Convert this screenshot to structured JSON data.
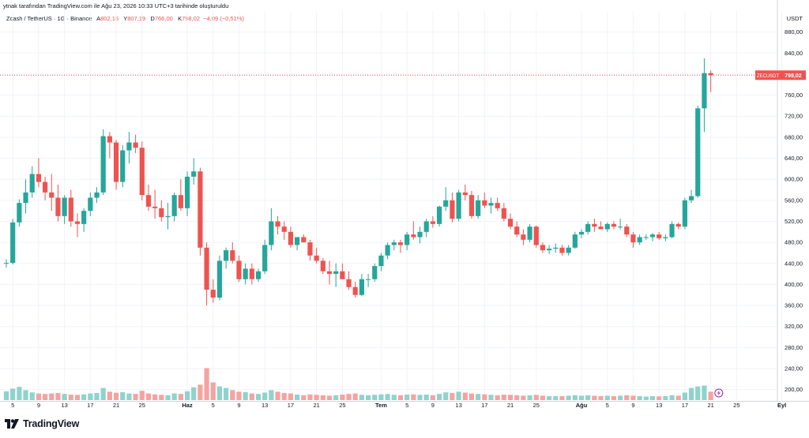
{
  "header": {
    "snapshot_text": "ytnak tarafından TradingView.com ile Ağu 23, 2026 10:33 UTC+3 tarihinde oluşturuldu"
  },
  "legend": {
    "symbol_text": "Zcash / TetherUS · 1G · Binance",
    "open_label": "A",
    "open_value": "802,16",
    "high_label": "Y",
    "high_value": "807,19",
    "low_label": "D",
    "low_value": "766,00",
    "close_label": "K",
    "close_value": "798,02",
    "change_text": "−4,09 (−0,51%)"
  },
  "footer": {
    "brand": "TradingView"
  },
  "colors": {
    "up": "#26a69a",
    "down": "#ef5350",
    "vol_up": "#8fd3cc",
    "vol_down": "#f5a3a1",
    "grid": "#f0f3fa",
    "text": "#131722"
  },
  "chart_data": {
    "type": "candlestick",
    "symbol_tag": "ZECUSDT",
    "last_price_label": "798,02",
    "last_price": 798.02,
    "currency": "USDT",
    "ylim": [
      180,
      920
    ],
    "y_ticks": [
      "200,00",
      "240,00",
      "280,00",
      "320,00",
      "360,00",
      "400,00",
      "440,00",
      "480,00",
      "520,00",
      "560,00",
      "600,00",
      "640,00",
      "680,00",
      "720,00",
      "760,00",
      "800,00",
      "840,00",
      "880,00"
    ],
    "y_tick_values": [
      200,
      240,
      280,
      320,
      360,
      400,
      440,
      480,
      520,
      560,
      600,
      640,
      680,
      720,
      760,
      800,
      840,
      880
    ],
    "x_ticks": [
      {
        "i": 1,
        "label": "5"
      },
      {
        "i": 5,
        "label": "9"
      },
      {
        "i": 9,
        "label": "13"
      },
      {
        "i": 13,
        "label": "17"
      },
      {
        "i": 17,
        "label": "21"
      },
      {
        "i": 21,
        "label": "25"
      },
      {
        "i": 28,
        "label": "Haz"
      },
      {
        "i": 32,
        "label": "5"
      },
      {
        "i": 36,
        "label": "9"
      },
      {
        "i": 40,
        "label": "13"
      },
      {
        "i": 44,
        "label": "17"
      },
      {
        "i": 48,
        "label": "21"
      },
      {
        "i": 52,
        "label": "25"
      },
      {
        "i": 58,
        "label": "Tem"
      },
      {
        "i": 62,
        "label": "5"
      },
      {
        "i": 66,
        "label": "9"
      },
      {
        "i": 70,
        "label": "13"
      },
      {
        "i": 74,
        "label": "17"
      },
      {
        "i": 78,
        "label": "21"
      },
      {
        "i": 82,
        "label": "25"
      },
      {
        "i": 89,
        "label": "Ağu"
      },
      {
        "i": 93,
        "label": "5"
      },
      {
        "i": 97,
        "label": "9"
      },
      {
        "i": 101,
        "label": "13"
      },
      {
        "i": 105,
        "label": "17"
      },
      {
        "i": 109,
        "label": "21"
      },
      {
        "i": 113,
        "label": "25"
      },
      {
        "i": 120,
        "label": "Eyl"
      }
    ],
    "candles": [
      {
        "o": 440,
        "h": 448,
        "l": 432,
        "c": 441,
        "v": 40
      },
      {
        "o": 441,
        "h": 525,
        "l": 438,
        "c": 518,
        "v": 52
      },
      {
        "o": 518,
        "h": 562,
        "l": 510,
        "c": 555,
        "v": 60
      },
      {
        "o": 555,
        "h": 600,
        "l": 535,
        "c": 575,
        "v": 45
      },
      {
        "o": 575,
        "h": 625,
        "l": 565,
        "c": 610,
        "v": 35
      },
      {
        "o": 610,
        "h": 640,
        "l": 585,
        "c": 595,
        "v": 30
      },
      {
        "o": 595,
        "h": 605,
        "l": 560,
        "c": 575,
        "v": 28
      },
      {
        "o": 575,
        "h": 610,
        "l": 540,
        "c": 565,
        "v": 30
      },
      {
        "o": 565,
        "h": 590,
        "l": 520,
        "c": 530,
        "v": 32
      },
      {
        "o": 530,
        "h": 570,
        "l": 515,
        "c": 565,
        "v": 28
      },
      {
        "o": 565,
        "h": 580,
        "l": 510,
        "c": 520,
        "v": 25
      },
      {
        "o": 520,
        "h": 535,
        "l": 490,
        "c": 515,
        "v": 24
      },
      {
        "o": 515,
        "h": 545,
        "l": 500,
        "c": 540,
        "v": 26
      },
      {
        "o": 540,
        "h": 575,
        "l": 530,
        "c": 565,
        "v": 30
      },
      {
        "o": 565,
        "h": 585,
        "l": 555,
        "c": 575,
        "v": 32
      },
      {
        "o": 575,
        "h": 695,
        "l": 570,
        "c": 682,
        "v": 55
      },
      {
        "o": 682,
        "h": 690,
        "l": 640,
        "c": 670,
        "v": 38
      },
      {
        "o": 670,
        "h": 675,
        "l": 580,
        "c": 595,
        "v": 33
      },
      {
        "o": 595,
        "h": 665,
        "l": 585,
        "c": 655,
        "v": 36
      },
      {
        "o": 655,
        "h": 690,
        "l": 630,
        "c": 670,
        "v": 30
      },
      {
        "o": 670,
        "h": 685,
        "l": 650,
        "c": 660,
        "v": 28
      },
      {
        "o": 660,
        "h": 672,
        "l": 560,
        "c": 570,
        "v": 42
      },
      {
        "o": 570,
        "h": 590,
        "l": 540,
        "c": 548,
        "v": 30
      },
      {
        "o": 548,
        "h": 580,
        "l": 525,
        "c": 545,
        "v": 26
      },
      {
        "o": 545,
        "h": 560,
        "l": 520,
        "c": 528,
        "v": 24
      },
      {
        "o": 528,
        "h": 555,
        "l": 505,
        "c": 530,
        "v": 22
      },
      {
        "o": 530,
        "h": 575,
        "l": 520,
        "c": 570,
        "v": 30
      },
      {
        "o": 570,
        "h": 600,
        "l": 540,
        "c": 545,
        "v": 28
      },
      {
        "o": 545,
        "h": 615,
        "l": 530,
        "c": 605,
        "v": 40
      },
      {
        "o": 605,
        "h": 640,
        "l": 590,
        "c": 615,
        "v": 58
      },
      {
        "o": 615,
        "h": 622,
        "l": 455,
        "c": 470,
        "v": 70
      },
      {
        "o": 470,
        "h": 480,
        "l": 360,
        "c": 390,
        "v": 145
      },
      {
        "o": 390,
        "h": 410,
        "l": 365,
        "c": 375,
        "v": 80
      },
      {
        "o": 375,
        "h": 455,
        "l": 370,
        "c": 445,
        "v": 62
      },
      {
        "o": 445,
        "h": 470,
        "l": 430,
        "c": 465,
        "v": 55
      },
      {
        "o": 465,
        "h": 480,
        "l": 440,
        "c": 445,
        "v": 45
      },
      {
        "o": 445,
        "h": 455,
        "l": 405,
        "c": 410,
        "v": 38
      },
      {
        "o": 410,
        "h": 440,
        "l": 400,
        "c": 430,
        "v": 36
      },
      {
        "o": 430,
        "h": 440,
        "l": 400,
        "c": 410,
        "v": 30
      },
      {
        "o": 410,
        "h": 430,
        "l": 405,
        "c": 425,
        "v": 28
      },
      {
        "o": 425,
        "h": 485,
        "l": 420,
        "c": 475,
        "v": 34
      },
      {
        "o": 475,
        "h": 545,
        "l": 465,
        "c": 520,
        "v": 45
      },
      {
        "o": 520,
        "h": 530,
        "l": 495,
        "c": 510,
        "v": 38
      },
      {
        "o": 510,
        "h": 520,
        "l": 485,
        "c": 500,
        "v": 32
      },
      {
        "o": 500,
        "h": 510,
        "l": 470,
        "c": 475,
        "v": 30
      },
      {
        "o": 475,
        "h": 490,
        "l": 465,
        "c": 490,
        "v": 25
      },
      {
        "o": 490,
        "h": 495,
        "l": 480,
        "c": 480,
        "v": 22
      },
      {
        "o": 480,
        "h": 485,
        "l": 445,
        "c": 455,
        "v": 26
      },
      {
        "o": 455,
        "h": 470,
        "l": 440,
        "c": 445,
        "v": 24
      },
      {
        "o": 445,
        "h": 450,
        "l": 420,
        "c": 425,
        "v": 22
      },
      {
        "o": 425,
        "h": 445,
        "l": 400,
        "c": 420,
        "v": 20
      },
      {
        "o": 420,
        "h": 440,
        "l": 395,
        "c": 425,
        "v": 22
      },
      {
        "o": 425,
        "h": 440,
        "l": 410,
        "c": 410,
        "v": 25
      },
      {
        "o": 410,
        "h": 425,
        "l": 390,
        "c": 395,
        "v": 28
      },
      {
        "o": 395,
        "h": 405,
        "l": 375,
        "c": 380,
        "v": 30
      },
      {
        "o": 380,
        "h": 420,
        "l": 378,
        "c": 410,
        "v": 24
      },
      {
        "o": 410,
        "h": 420,
        "l": 395,
        "c": 410,
        "v": 22
      },
      {
        "o": 410,
        "h": 440,
        "l": 405,
        "c": 435,
        "v": 24
      },
      {
        "o": 435,
        "h": 460,
        "l": 425,
        "c": 455,
        "v": 26
      },
      {
        "o": 455,
        "h": 480,
        "l": 448,
        "c": 475,
        "v": 28
      },
      {
        "o": 475,
        "h": 485,
        "l": 465,
        "c": 480,
        "v": 24
      },
      {
        "o": 480,
        "h": 485,
        "l": 460,
        "c": 475,
        "v": 22
      },
      {
        "o": 475,
        "h": 500,
        "l": 465,
        "c": 495,
        "v": 25
      },
      {
        "o": 495,
        "h": 520,
        "l": 485,
        "c": 490,
        "v": 26
      },
      {
        "o": 490,
        "h": 510,
        "l": 478,
        "c": 500,
        "v": 24
      },
      {
        "o": 500,
        "h": 525,
        "l": 490,
        "c": 520,
        "v": 25
      },
      {
        "o": 520,
        "h": 530,
        "l": 508,
        "c": 515,
        "v": 22
      },
      {
        "o": 515,
        "h": 550,
        "l": 510,
        "c": 548,
        "v": 28
      },
      {
        "o": 548,
        "h": 585,
        "l": 540,
        "c": 560,
        "v": 35
      },
      {
        "o": 560,
        "h": 575,
        "l": 518,
        "c": 525,
        "v": 32
      },
      {
        "o": 525,
        "h": 580,
        "l": 520,
        "c": 575,
        "v": 38
      },
      {
        "o": 575,
        "h": 590,
        "l": 560,
        "c": 570,
        "v": 34
      },
      {
        "o": 570,
        "h": 578,
        "l": 525,
        "c": 530,
        "v": 30
      },
      {
        "o": 530,
        "h": 570,
        "l": 525,
        "c": 560,
        "v": 28
      },
      {
        "o": 560,
        "h": 575,
        "l": 545,
        "c": 550,
        "v": 26
      },
      {
        "o": 550,
        "h": 565,
        "l": 535,
        "c": 555,
        "v": 24
      },
      {
        "o": 555,
        "h": 565,
        "l": 540,
        "c": 545,
        "v": 22
      },
      {
        "o": 545,
        "h": 555,
        "l": 520,
        "c": 525,
        "v": 25
      },
      {
        "o": 525,
        "h": 535,
        "l": 505,
        "c": 510,
        "v": 24
      },
      {
        "o": 510,
        "h": 520,
        "l": 490,
        "c": 495,
        "v": 22
      },
      {
        "o": 495,
        "h": 505,
        "l": 475,
        "c": 485,
        "v": 20
      },
      {
        "o": 485,
        "h": 515,
        "l": 480,
        "c": 510,
        "v": 22
      },
      {
        "o": 510,
        "h": 512,
        "l": 470,
        "c": 475,
        "v": 24
      },
      {
        "o": 475,
        "h": 480,
        "l": 460,
        "c": 465,
        "v": 20
      },
      {
        "o": 465,
        "h": 475,
        "l": 458,
        "c": 468,
        "v": 18
      },
      {
        "o": 468,
        "h": 478,
        "l": 460,
        "c": 470,
        "v": 18
      },
      {
        "o": 470,
        "h": 475,
        "l": 455,
        "c": 460,
        "v": 18
      },
      {
        "o": 460,
        "h": 475,
        "l": 455,
        "c": 470,
        "v": 20
      },
      {
        "o": 470,
        "h": 500,
        "l": 468,
        "c": 495,
        "v": 22
      },
      {
        "o": 495,
        "h": 505,
        "l": 488,
        "c": 500,
        "v": 20
      },
      {
        "o": 500,
        "h": 520,
        "l": 495,
        "c": 515,
        "v": 22
      },
      {
        "o": 515,
        "h": 525,
        "l": 500,
        "c": 510,
        "v": 20
      },
      {
        "o": 510,
        "h": 520,
        "l": 505,
        "c": 505,
        "v": 18
      },
      {
        "o": 505,
        "h": 518,
        "l": 500,
        "c": 515,
        "v": 20
      },
      {
        "o": 515,
        "h": 520,
        "l": 505,
        "c": 510,
        "v": 18
      },
      {
        "o": 510,
        "h": 525,
        "l": 505,
        "c": 510,
        "v": 20
      },
      {
        "o": 510,
        "h": 515,
        "l": 490,
        "c": 495,
        "v": 22
      },
      {
        "o": 495,
        "h": 500,
        "l": 470,
        "c": 480,
        "v": 20
      },
      {
        "o": 480,
        "h": 495,
        "l": 475,
        "c": 490,
        "v": 18
      },
      {
        "o": 490,
        "h": 495,
        "l": 485,
        "c": 490,
        "v": 16
      },
      {
        "o": 490,
        "h": 498,
        "l": 482,
        "c": 495,
        "v": 18
      },
      {
        "o": 495,
        "h": 500,
        "l": 485,
        "c": 488,
        "v": 17
      },
      {
        "o": 488,
        "h": 495,
        "l": 482,
        "c": 490,
        "v": 18
      },
      {
        "o": 490,
        "h": 520,
        "l": 488,
        "c": 515,
        "v": 22
      },
      {
        "o": 515,
        "h": 518,
        "l": 505,
        "c": 510,
        "v": 20
      },
      {
        "o": 510,
        "h": 565,
        "l": 505,
        "c": 560,
        "v": 34
      },
      {
        "o": 560,
        "h": 580,
        "l": 555,
        "c": 568,
        "v": 55
      },
      {
        "o": 568,
        "h": 740,
        "l": 565,
        "c": 735,
        "v": 62
      },
      {
        "o": 735,
        "h": 830,
        "l": 690,
        "c": 802,
        "v": 66
      },
      {
        "o": 802,
        "h": 807,
        "l": 766,
        "c": 798,
        "v": 38
      }
    ]
  }
}
